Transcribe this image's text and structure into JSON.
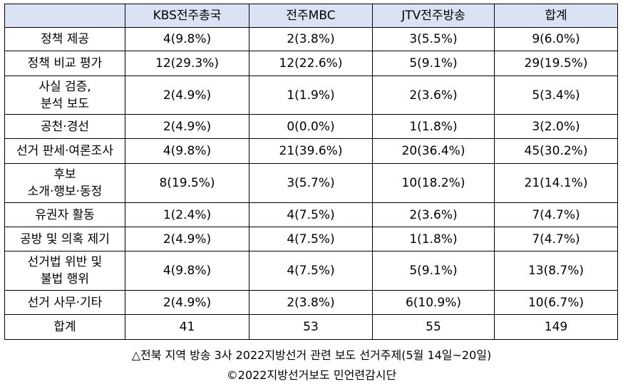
{
  "table": {
    "headers": [
      "",
      "KBS전주총국",
      "전주MBC",
      "JTV전주방송",
      "합계"
    ],
    "rows": [
      {
        "label": [
          "정책 제공"
        ],
        "cells": [
          "4(9.8%)",
          "2(3.8%)",
          "3(5.5%)",
          "9(6.0%)"
        ]
      },
      {
        "label": [
          "정책 비교 평가"
        ],
        "cells": [
          "12(29.3%)",
          "12(22.6%)",
          "5(9.1%)",
          "29(19.5%)"
        ]
      },
      {
        "label": [
          "사실 검증,",
          "분석 보도"
        ],
        "cells": [
          "2(4.9%)",
          "1(1.9%)",
          "2(3.6%)",
          "5(3.4%)"
        ]
      },
      {
        "label": [
          "공천·경선"
        ],
        "cells": [
          "2(4.9%)",
          "0(0.0%)",
          "1(1.8%)",
          "3(2.0%)"
        ]
      },
      {
        "label": [
          "선거 판세·여론조사"
        ],
        "cells": [
          "4(9.8%)",
          "21(39.6%)",
          "20(36.4%)",
          "45(30.2%)"
        ]
      },
      {
        "label": [
          "후보",
          "소개·행보·동정"
        ],
        "cells": [
          "8(19.5%)",
          "3(5.7%)",
          "10(18.2%)",
          "21(14.1%)"
        ]
      },
      {
        "label": [
          "유권자 활동"
        ],
        "cells": [
          "1(2.4%)",
          "4(7.5%)",
          "2(3.6%)",
          "7(4.7%)"
        ]
      },
      {
        "label": [
          "공방 및 의혹 제기"
        ],
        "cells": [
          "2(4.9%)",
          "4(7.5%)",
          "1(1.8%)",
          "7(4.7%)"
        ]
      },
      {
        "label": [
          "선거법 위반 및",
          "불법 행위"
        ],
        "cells": [
          "4(9.8%)",
          "4(7.5%)",
          "5(9.1%)",
          "13(8.7%)"
        ]
      },
      {
        "label": [
          "선거 사무·기타"
        ],
        "cells": [
          "2(4.9%)",
          "2(3.8%)",
          "6(10.9%)",
          "10(6.7%)"
        ]
      },
      {
        "label": [
          "합계"
        ],
        "cells": [
          "41",
          "53",
          "55",
          "149"
        ]
      }
    ]
  },
  "caption": {
    "line1": "△전북 지역 방송 3사 2022지방선거 관련 보도 선거주제(5월 14일~20일)",
    "line2": "©2022지방선거보도 민언련감시단"
  },
  "colors": {
    "header_background": "#dae3f3",
    "border": "#000000"
  }
}
